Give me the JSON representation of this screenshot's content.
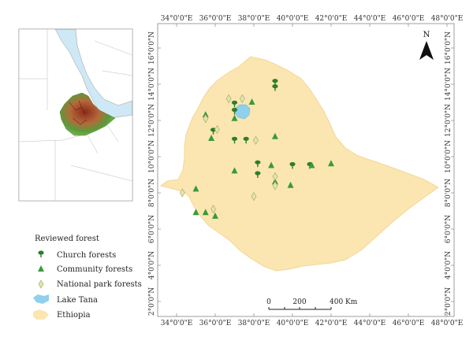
{
  "main_map": {
    "lon_ticks": [
      "34°0'0\"E",
      "36°0'0\"E",
      "38°0'0\"E",
      "40°0'0\"E",
      "42°0'0\"E",
      "44°0'0\"E",
      "46°0'0\"E",
      "48°0'0\"E"
    ],
    "lon_values": [
      34,
      36,
      38,
      40,
      42,
      44,
      46,
      48
    ],
    "lat_ticks": [
      "2°0'0\"N",
      "4°0'0\"N",
      "6°0'0\"N",
      "8°0'0\"N",
      "10°0'0\"N",
      "12°0'0\"N",
      "14°0'0\"N",
      "16°0'0\"N"
    ],
    "lat_values": [
      2,
      4,
      6,
      8,
      10,
      12,
      14,
      16
    ],
    "north_label": "N",
    "scale": {
      "labels": [
        "0",
        "200",
        "400 Km"
      ]
    },
    "country_color": "#fbe6b1",
    "lake_color": "#8fd0ec"
  },
  "sites": {
    "church": [
      [
        39.1,
        14.1
      ],
      [
        39.1,
        13.8
      ],
      [
        37.0,
        12.9
      ],
      [
        37.0,
        12.5
      ],
      [
        35.9,
        11.4
      ],
      [
        37.0,
        10.9
      ],
      [
        37.6,
        10.9
      ],
      [
        38.2,
        9.6
      ],
      [
        38.2,
        9.0
      ],
      [
        40.0,
        9.5
      ],
      [
        40.9,
        9.5
      ]
    ],
    "community": [
      [
        35.5,
        12.3
      ],
      [
        37.9,
        13.0
      ],
      [
        37.0,
        12.1
      ],
      [
        35.8,
        11.0
      ],
      [
        39.1,
        11.1
      ],
      [
        38.9,
        9.5
      ],
      [
        37.0,
        9.2
      ],
      [
        39.1,
        8.6
      ],
      [
        35.0,
        8.2
      ],
      [
        39.9,
        8.4
      ],
      [
        41.0,
        9.5
      ],
      [
        42.0,
        9.6
      ],
      [
        35.0,
        6.9
      ],
      [
        35.5,
        6.9
      ],
      [
        36.0,
        6.7
      ]
    ],
    "national_park": [
      [
        36.7,
        13.2
      ],
      [
        37.4,
        13.2
      ],
      [
        35.5,
        12.1
      ],
      [
        36.1,
        11.5
      ],
      [
        38.1,
        10.9
      ],
      [
        39.1,
        8.9
      ],
      [
        39.1,
        8.4
      ],
      [
        34.3,
        8.0
      ],
      [
        38.0,
        7.8
      ],
      [
        35.9,
        7.1
      ]
    ]
  },
  "legend": {
    "title": "Reviewed forest",
    "items": [
      {
        "key": "church",
        "label": "Church forests"
      },
      {
        "key": "community",
        "label": "Community forests"
      },
      {
        "key": "national_park",
        "label": "National park forests"
      },
      {
        "key": "lake",
        "label": "Lake Tana"
      },
      {
        "key": "country",
        "label": "Ethiopia"
      }
    ]
  },
  "colors": {
    "church": "#2f7d2a",
    "community": "#3a9a3a",
    "national_park": "#c8c98e",
    "inset_sea": "#cfe8f5",
    "inset_land": "#ffffff",
    "inset_relief_low": "#5a9a3a",
    "inset_relief_high": "#8a2a1a"
  }
}
